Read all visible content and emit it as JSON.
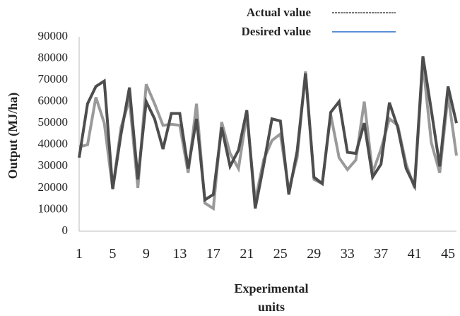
{
  "chart_data": {
    "type": "line",
    "title": "",
    "xlabel": [
      "Experimental",
      "units"
    ],
    "ylabel": "Output (MJ/ha)",
    "ylim": [
      0,
      90000
    ],
    "y_ticks": [
      0,
      10000,
      20000,
      30000,
      40000,
      50000,
      60000,
      70000,
      80000,
      90000
    ],
    "x_ticks": [
      1,
      5,
      9,
      13,
      17,
      21,
      25,
      29,
      33,
      37,
      41,
      45
    ],
    "x": [
      1,
      2,
      3,
      4,
      5,
      6,
      7,
      8,
      9,
      10,
      11,
      12,
      13,
      14,
      15,
      16,
      17,
      18,
      19,
      20,
      21,
      22,
      23,
      24,
      25,
      26,
      27,
      28,
      29,
      30,
      31,
      32,
      33,
      34,
      35,
      36,
      37,
      38,
      39,
      40,
      41,
      42,
      43,
      44,
      45,
      46
    ],
    "grid": false,
    "legend_position": "top-right",
    "series": [
      {
        "name": "Actual value",
        "color": "#4d4d4d",
        "values": [
          34000,
          59000,
          67000,
          69500,
          19500,
          45000,
          66500,
          24000,
          60000,
          52000,
          38000,
          54500,
          54500,
          29000,
          52000,
          14500,
          17000,
          48000,
          30000,
          37500,
          56000,
          10500,
          30500,
          52000,
          51000,
          17000,
          37000,
          73000,
          25000,
          22000,
          55000,
          60000,
          36500,
          36000,
          50000,
          25000,
          31000,
          59500,
          48000,
          29000,
          21000,
          81000,
          56000,
          30000,
          67000,
          50000
        ]
      },
      {
        "name": "Desired value",
        "color": "#9a9a9a",
        "values": [
          39000,
          40000,
          62000,
          50000,
          19500,
          48000,
          61000,
          20000,
          68000,
          59000,
          49000,
          49500,
          49000,
          27000,
          59000,
          13000,
          10500,
          50500,
          36000,
          29000,
          54000,
          14000,
          33000,
          42000,
          45000,
          19000,
          34000,
          74000,
          24000,
          22000,
          54000,
          34000,
          28500,
          33000,
          60000,
          27000,
          38000,
          52000,
          49000,
          31000,
          20000,
          78000,
          41000,
          27000,
          63000,
          35000
        ]
      }
    ]
  }
}
